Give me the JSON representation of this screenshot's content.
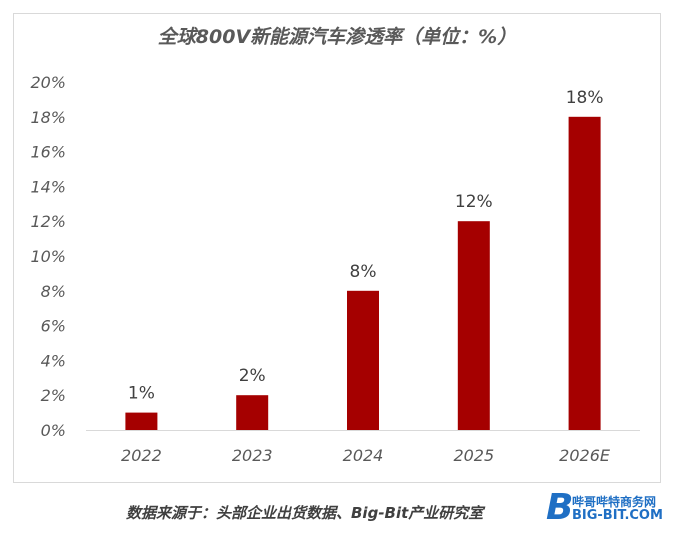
{
  "chart_data": {
    "type": "bar",
    "title": "全球800V新能源汽车渗透率（单位：%）",
    "categories": [
      "2022",
      "2023",
      "2024",
      "2025",
      "2026E"
    ],
    "values": [
      1,
      2,
      8,
      12,
      18
    ],
    "data_labels": [
      "1%",
      "2%",
      "8%",
      "12%",
      "18%"
    ],
    "y_ticks": [
      "0%",
      "2%",
      "4%",
      "6%",
      "8%",
      "10%",
      "12%",
      "14%",
      "16%",
      "18%",
      "20%"
    ],
    "ylim": [
      0,
      20
    ],
    "grid": false,
    "legend": "none",
    "bar_color": "#a50000"
  },
  "source": "数据来源于：头部企业出货数据、Big-Bit产业研究室",
  "watermark": {
    "letter": "B",
    "line1": "哔哥哔特商务网",
    "line2": "BIG-BIT.COM"
  }
}
